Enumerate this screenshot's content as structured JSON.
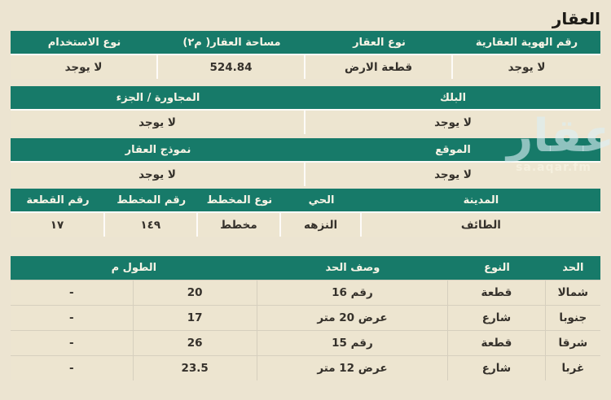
{
  "page_title": "العقار",
  "watermark": {
    "logo_text": "عقار",
    "site_text": "sa.aqar.fm"
  },
  "colors": {
    "header_green": "#177a69",
    "background": "#ece4d1",
    "row_background": "#ede5d0",
    "header_text": "#f8f4e6",
    "body_text": "#35312b"
  },
  "property": {
    "sections": [
      {
        "columns": [
          {
            "header": "رقم الهوية العقارية",
            "value": "لا يوجد"
          },
          {
            "header": "نوع العقار",
            "value": "قطعة الارض"
          },
          {
            "header": "مساحة العقار( م٢)",
            "value": "524.84"
          },
          {
            "header": "نوع الاستخدام",
            "value": "لا يوجد"
          }
        ]
      },
      {
        "columns": [
          {
            "header": "البلك",
            "value": "لا يوجد"
          },
          {
            "header": "المجاورة / الجزء",
            "value": "لا يوجد"
          }
        ]
      },
      {
        "columns": [
          {
            "header": "الموقع",
            "value": "لا يوجد"
          },
          {
            "header": "نموذج العقار",
            "value": "لا يوجد"
          }
        ]
      },
      {
        "columns": [
          {
            "header": "المدينة",
            "value": "الطائف"
          },
          {
            "header": "الحي",
            "value": "النزهه"
          },
          {
            "header": "نوع المخطط",
            "value": "مخطط"
          },
          {
            "header": "رقم المخطط",
            "value": "١٤٩"
          },
          {
            "header": "رقم القطعة",
            "value": "١٧"
          }
        ]
      }
    ]
  },
  "boundaries": {
    "headers": {
      "side": "الحد",
      "type": "النوع",
      "description": "وصف الحد",
      "length": "الطول م"
    },
    "rows": [
      {
        "side": "شمالا",
        "type": "قطعة",
        "description": "رقم 16",
        "length": "20",
        "note": "-"
      },
      {
        "side": "جنوبا",
        "type": "شارع",
        "description": "عرض 20 متر",
        "length": "17",
        "note": "-"
      },
      {
        "side": "شرقا",
        "type": "قطعة",
        "description": "رقم 15",
        "length": "26",
        "note": "-"
      },
      {
        "side": "غربا",
        "type": "شارع",
        "description": "عرض 12 متر",
        "length": "23.5",
        "note": "-"
      }
    ]
  }
}
